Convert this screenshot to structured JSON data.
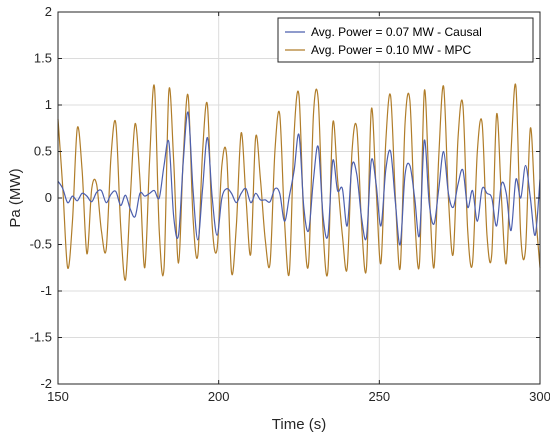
{
  "chart_data": {
    "type": "line",
    "title": "",
    "xlabel": "Time (s)",
    "ylabel": "Pa (MW)",
    "xlim": [
      150,
      300
    ],
    "ylim": [
      -2,
      2
    ],
    "x_ticks": [
      150,
      200,
      250,
      300
    ],
    "y_ticks": [
      -2,
      -1.5,
      -1,
      -0.5,
      0,
      0.5,
      1,
      1.5,
      2
    ],
    "x_tick_labels": [
      "150",
      "200",
      "250",
      "300"
    ],
    "y_tick_labels": [
      "-2",
      "-1.5",
      "-1",
      "-0.5",
      "0",
      "0.5",
      "1",
      "1.5",
      "2"
    ],
    "grid": true,
    "legend_position": "top-right",
    "series": [
      {
        "name": "Avg. Power = 0.07 MW - Causal",
        "color": "#4c5fae",
        "x": [
          150,
          151.5,
          153,
          154.5,
          156,
          157.5,
          159,
          160.5,
          162,
          163.5,
          165,
          166.5,
          168,
          169.5,
          171,
          172.5,
          174,
          175.5,
          177,
          178.5,
          180,
          181.5,
          183,
          184.5,
          186,
          187.5,
          189,
          190.5,
          192,
          193.5,
          195,
          196.5,
          198,
          199.5,
          201,
          202.5,
          204,
          205.5,
          207,
          208.5,
          210,
          211.5,
          213,
          214.5,
          216,
          217.5,
          219,
          220.5,
          222,
          223.5,
          225,
          226.5,
          228,
          229.5,
          231,
          232.5,
          234,
          235.5,
          237,
          238.5,
          240,
          241.5,
          243,
          244.5,
          246,
          247.5,
          249,
          250.5,
          252,
          253.5,
          255,
          256.5,
          258,
          259.5,
          261,
          262.5,
          264,
          265.5,
          267,
          268.5,
          270,
          271.5,
          273,
          274.5,
          276,
          277.5,
          279,
          280.5,
          282,
          283.5,
          285,
          286.5,
          288,
          289.5,
          291,
          292.5,
          294,
          295.5,
          297,
          298.5,
          300
        ],
        "values": [
          0.18,
          0.1,
          -0.05,
          0.02,
          -0.03,
          0.05,
          0.02,
          -0.04,
          0.06,
          0.08,
          -0.05,
          0.04,
          0.07,
          -0.08,
          0.03,
          -0.12,
          -0.2,
          0.05,
          0.02,
          0.05,
          0.08,
          0.0,
          0.35,
          0.6,
          -0.2,
          -0.4,
          0.4,
          0.92,
          0.1,
          -0.45,
          0.1,
          0.65,
          0.0,
          -0.4,
          0.0,
          0.1,
          0.05,
          -0.05,
          0.05,
          0.1,
          -0.05,
          0.05,
          -0.02,
          -0.02,
          -0.04,
          0.1,
          0.05,
          -0.25,
          0.02,
          0.3,
          0.68,
          -0.1,
          -0.35,
          0.2,
          0.55,
          -0.2,
          -0.4,
          0.4,
          0.08,
          0.1,
          -0.3,
          0.35,
          0.25,
          -0.22,
          -0.42,
          0.4,
          0.15,
          -0.3,
          0.3,
          0.5,
          -0.05,
          -0.5,
          0.25,
          0.35,
          0.0,
          -0.4,
          0.62,
          -0.05,
          -0.28,
          0.1,
          0.5,
          0.05,
          -0.1,
          0.15,
          0.3,
          -0.1,
          0.08,
          -0.25,
          0.1,
          0.05,
          0.0,
          -0.3,
          0.15,
          0.05,
          -0.35,
          0.2,
          0.0,
          0.35,
          0.0,
          -0.4,
          0.2
        ]
      },
      {
        "name": "Avg. Power = 0.10 MW - MPC",
        "color": "#b07d2a",
        "x": [
          150,
          151.5,
          153,
          154.5,
          156,
          157.5,
          159,
          160.5,
          162,
          163.5,
          165,
          166.5,
          168,
          169.5,
          171,
          172.5,
          174,
          175.5,
          177,
          178.5,
          180,
          181.5,
          183,
          184.5,
          186,
          187.5,
          189,
          190.5,
          192,
          193.5,
          195,
          196.5,
          198,
          199.5,
          201,
          202.5,
          204,
          205.5,
          207,
          208.5,
          210,
          211.5,
          213,
          214.5,
          216,
          217.5,
          219,
          220.5,
          222,
          223.5,
          225,
          226.5,
          228,
          229.5,
          231,
          232.5,
          234,
          235.5,
          237,
          238.5,
          240,
          241.5,
          243,
          244.5,
          246,
          247.5,
          249,
          250.5,
          252,
          253.5,
          255,
          256.5,
          258,
          259.5,
          261,
          262.5,
          264,
          265.5,
          267,
          268.5,
          270,
          271.5,
          273,
          274.5,
          276,
          277.5,
          279,
          280.5,
          282,
          283.5,
          285,
          286.5,
          288,
          289.5,
          291,
          292.5,
          294,
          295.5,
          297,
          298.5,
          300
        ],
        "values": [
          0.85,
          0.1,
          -0.75,
          -0.25,
          0.75,
          0.3,
          -0.6,
          0.1,
          0.15,
          -0.35,
          -0.55,
          0.45,
          0.8,
          -0.3,
          -0.88,
          0.0,
          0.8,
          0.2,
          -0.75,
          0.4,
          1.2,
          -0.35,
          -0.75,
          1.15,
          0.4,
          -0.7,
          0.45,
          1.1,
          -0.2,
          -0.62,
          0.5,
          1.0,
          -0.3,
          -0.55,
          0.35,
          0.45,
          -0.8,
          -0.3,
          0.7,
          0.0,
          -0.6,
          0.65,
          0.2,
          -0.45,
          -0.7,
          0.5,
          0.9,
          -0.25,
          -0.8,
          0.7,
          1.1,
          -0.25,
          -0.7,
          0.9,
          1.05,
          -0.35,
          -0.78,
          0.8,
          0.2,
          -0.4,
          -0.75,
          0.5,
          0.75,
          -0.3,
          -0.75,
          0.95,
          0.1,
          -0.7,
          0.6,
          1.1,
          0.0,
          -0.75,
          0.8,
          1.05,
          -0.2,
          -0.7,
          1.15,
          0.1,
          -0.75,
          0.45,
          1.2,
          0.0,
          -0.6,
          0.65,
          1.0,
          -0.35,
          -0.7,
          0.5,
          0.8,
          -0.4,
          -0.6,
          0.9,
          0.0,
          -0.7,
          0.5,
          1.2,
          -0.4,
          -0.55,
          0.75,
          -0.1,
          -0.75
        ]
      }
    ]
  }
}
